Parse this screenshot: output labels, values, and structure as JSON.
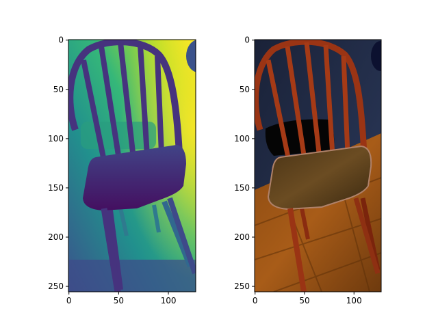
{
  "figure": {
    "panels": [
      {
        "name": "depth-map",
        "colormap": "viridis",
        "x_ticks": [
          "0",
          "50",
          "100"
        ],
        "y_ticks": [
          "0",
          "50",
          "100",
          "150",
          "200",
          "250"
        ]
      },
      {
        "name": "rgb-image",
        "x_ticks": [
          "0",
          "50",
          "100"
        ],
        "y_ticks": [
          "0",
          "50",
          "100",
          "150",
          "200",
          "250"
        ]
      }
    ],
    "image_width": 128,
    "image_height": 256
  }
}
